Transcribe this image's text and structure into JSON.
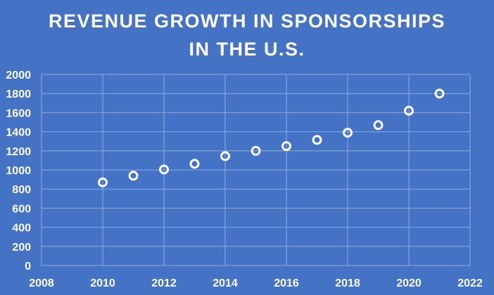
{
  "chart_data": {
    "type": "scatter",
    "title_lines": [
      "REVENUE GROWTH IN SPONSORSHIPS",
      "IN THE U.S."
    ],
    "xlabel": "",
    "ylabel": "",
    "xlim": [
      2008,
      2022
    ],
    "ylim": [
      0,
      2000
    ],
    "x_ticks": [
      2008,
      2010,
      2012,
      2014,
      2016,
      2018,
      2020,
      2022
    ],
    "y_ticks": [
      0,
      200,
      400,
      600,
      800,
      1000,
      1200,
      1400,
      1600,
      1800,
      2000
    ],
    "grid": true,
    "legend": "none",
    "series": [
      {
        "x": [
          2010,
          2011,
          2012,
          2013,
          2014,
          2015,
          2016,
          2017,
          2018,
          2019,
          2020,
          2021
        ],
        "y": [
          870,
          940,
          1005,
          1065,
          1145,
          1200,
          1250,
          1315,
          1390,
          1470,
          1620,
          1800
        ]
      }
    ],
    "colors": {
      "background": "#4472C4",
      "grid": "#8FAADC",
      "marker_stroke": "#FFFFFF",
      "text": "#FFFFFF"
    }
  }
}
